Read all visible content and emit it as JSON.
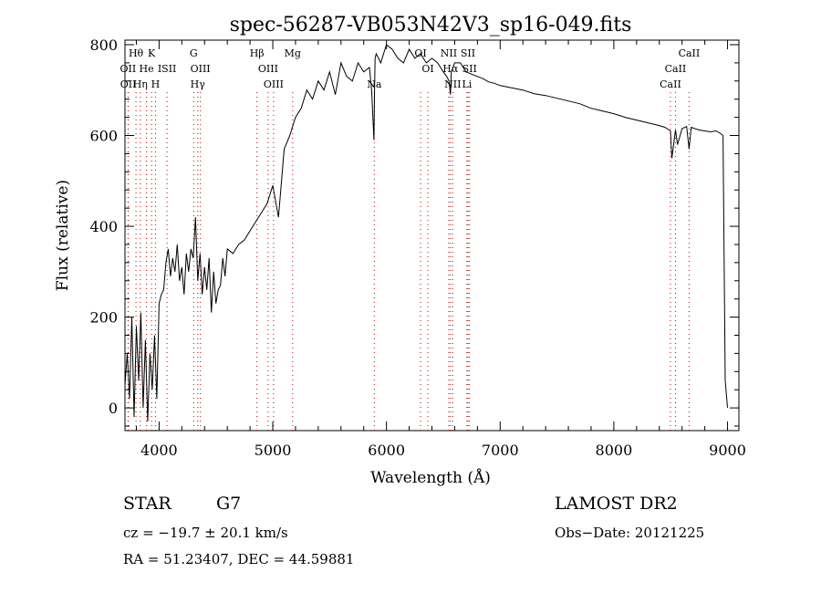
{
  "chart_data": {
    "type": "line",
    "title": "spec-56287-VB053N42V3_sp16-049.fits",
    "xlabel": "Wavelength (Å)",
    "ylabel": "Flux (relative)",
    "xlim": [
      3700,
      9100
    ],
    "ylim": [
      -50,
      810
    ],
    "xticks": [
      4000,
      5000,
      6000,
      7000,
      8000,
      9000
    ],
    "yticks": [
      0,
      200,
      400,
      600,
      800
    ],
    "grid": false,
    "series": [
      {
        "x": [
          3700,
          3720,
          3740,
          3760,
          3780,
          3800,
          3820,
          3840,
          3860,
          3880,
          3900,
          3920,
          3940,
          3960,
          3980,
          4000,
          4020,
          4040,
          4060,
          4080,
          4100,
          4120,
          4140,
          4160,
          4180,
          4200,
          4220,
          4240,
          4260,
          4280,
          4300,
          4320,
          4340,
          4360,
          4380,
          4400,
          4420,
          4440,
          4460,
          4480,
          4500,
          4520,
          4540,
          4560,
          4580,
          4600,
          4650,
          4700,
          4750,
          4800,
          4850,
          4900,
          4950,
          5000,
          5050,
          5100,
          5150,
          5200,
          5250,
          5300,
          5350,
          5400,
          5450,
          5500,
          5550,
          5600,
          5650,
          5700,
          5750,
          5800,
          5850,
          5870,
          5890,
          5895,
          5900,
          5910,
          5950,
          6000,
          6050,
          6100,
          6150,
          6200,
          6250,
          6300,
          6350,
          6400,
          6450,
          6500,
          6530,
          6550,
          6563,
          6570,
          6600,
          6650,
          6700,
          6750,
          6800,
          6850,
          6900,
          6950,
          7000,
          7100,
          7200,
          7300,
          7400,
          7500,
          7600,
          7700,
          7800,
          7900,
          8000,
          8100,
          8200,
          8300,
          8400,
          8450,
          8498,
          8510,
          8542,
          8560,
          8600,
          8640,
          8662,
          8680,
          8750,
          8800,
          8850,
          8900,
          8940,
          8960,
          8980,
          9000
        ],
        "values": [
          50,
          120,
          20,
          200,
          -20,
          180,
          60,
          210,
          0,
          150,
          -30,
          120,
          40,
          160,
          20,
          230,
          250,
          260,
          320,
          350,
          290,
          330,
          300,
          360,
          280,
          310,
          250,
          340,
          300,
          350,
          330,
          420,
          280,
          340,
          250,
          310,
          260,
          330,
          210,
          300,
          230,
          260,
          270,
          330,
          290,
          350,
          340,
          360,
          370,
          390,
          410,
          430,
          450,
          490,
          420,
          570,
          600,
          640,
          660,
          700,
          680,
          720,
          700,
          740,
          690,
          760,
          730,
          720,
          760,
          740,
          750,
          700,
          590,
          700,
          770,
          780,
          760,
          800,
          790,
          770,
          760,
          790,
          770,
          780,
          760,
          770,
          760,
          740,
          730,
          720,
          690,
          740,
          760,
          760,
          740,
          735,
          730,
          725,
          718,
          715,
          710,
          705,
          700,
          692,
          688,
          682,
          676,
          670,
          660,
          654,
          648,
          640,
          634,
          628,
          622,
          618,
          610,
          550,
          612,
          580,
          615,
          620,
          570,
          618,
          612,
          610,
          608,
          610,
          604,
          600,
          60,
          0
        ]
      }
    ],
    "line_markers": [
      {
        "label": "Hθ",
        "x": 3797,
        "row": 1
      },
      {
        "label": "K",
        "x": 3934,
        "row": 1
      },
      {
        "label": "OII",
        "x": 3727,
        "row": 2
      },
      {
        "label": "He",
        "x": 3889,
        "row": 2
      },
      {
        "label": "ISII",
        "x": 4070,
        "row": 2
      },
      {
        "label": "OII",
        "x": 3729,
        "row": 3
      },
      {
        "label": "Hη",
        "x": 3835,
        "row": 3
      },
      {
        "label": "H",
        "x": 3968,
        "row": 3
      },
      {
        "label": "G",
        "x": 4304,
        "row": 1
      },
      {
        "label": "OIII",
        "x": 4363,
        "row": 2
      },
      {
        "label": "Hγ",
        "x": 4340,
        "row": 3
      },
      {
        "label": "Hβ",
        "x": 4861,
        "row": 1
      },
      {
        "label": "OIII",
        "x": 4959,
        "row": 2
      },
      {
        "label": "OIII",
        "x": 5007,
        "row": 3
      },
      {
        "label": "Mg",
        "x": 5175,
        "row": 1
      },
      {
        "label": "Na",
        "x": 5893,
        "row": 3
      },
      {
        "label": "OI",
        "x": 6300,
        "row": 1
      },
      {
        "label": "OI",
        "x": 6364,
        "row": 2
      },
      {
        "label": "NII",
        "x": 6548,
        "row": 1
      },
      {
        "label": "SII",
        "x": 6717,
        "row": 1
      },
      {
        "label": "Hα",
        "x": 6563,
        "row": 2
      },
      {
        "label": "SII",
        "x": 6731,
        "row": 2
      },
      {
        "label": "NII",
        "x": 6583,
        "row": 3
      },
      {
        "label": "Li",
        "x": 6708,
        "row": 3
      },
      {
        "label": "CaII",
        "x": 8662,
        "row": 1
      },
      {
        "label": "CaII",
        "x": 8542,
        "row": 2
      },
      {
        "label": "CaII",
        "x": 8498,
        "row": 3
      }
    ]
  },
  "info": {
    "class": "STAR",
    "subclass": "G7",
    "survey": "LAMOST DR2",
    "cz": "cz = −19.7 ± 20.1 km/s",
    "obsdate": "Obs−Date: 20121225",
    "radec": "RA =  51.23407, DEC =  44.59881"
  }
}
